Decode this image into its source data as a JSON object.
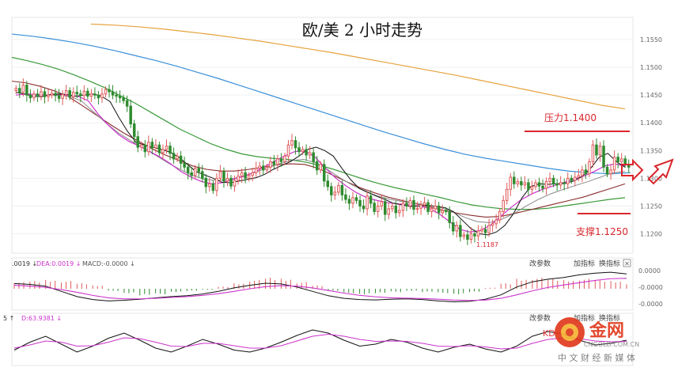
{
  "chart_data": [
    {
      "type": "candlestick",
      "title": "欧/美 2 小时走势",
      "yticks": [
        "1.1550",
        "1.1500",
        "1.1450",
        "1.1400",
        "1.1350",
        "1.1300",
        "1.1250",
        "1.1200"
      ],
      "ylim": [
        1.1165,
        1.159
      ],
      "low_label": "1.1187",
      "annotations": {
        "resistance_label": "压力1.1400",
        "resistance_value": 1.14,
        "support_label": "支撑1.1250",
        "support_value": 1.125
      },
      "colors": {
        "up": "#e05a5a",
        "down": "#2e8b2e",
        "ma_black": "#111111",
        "ma_magenta": "#cc33cc",
        "ma_gray": "#8a8a8a",
        "ma_brown": "#8b2c2c",
        "ma_green": "#3a9a3a",
        "ma_blue": "#3a8fd9",
        "ma_orange": "#e6a23c",
        "level_red": "#d9262c"
      },
      "candles_close": [
        1.1462,
        1.1455,
        1.1468,
        1.145,
        1.1445,
        1.1452,
        1.1448,
        1.1456,
        1.1447,
        1.145,
        1.1453,
        1.1449,
        1.1444,
        1.1451,
        1.1458,
        1.1447,
        1.1455,
        1.1452,
        1.1449,
        1.1457,
        1.1448,
        1.1452,
        1.145,
        1.1445,
        1.1452,
        1.146,
        1.1456,
        1.145,
        1.1448,
        1.1445,
        1.144,
        1.143,
        1.1398,
        1.1375,
        1.1356,
        1.136,
        1.1348,
        1.1365,
        1.1355,
        1.136,
        1.1346,
        1.1352,
        1.1358,
        1.1345,
        1.1335,
        1.134,
        1.1327,
        1.132,
        1.131,
        1.1305,
        1.1318,
        1.1312,
        1.13,
        1.1285,
        1.129,
        1.1278,
        1.13,
        1.1312,
        1.1295,
        1.13,
        1.1286,
        1.1296,
        1.1304,
        1.131,
        1.13,
        1.1305,
        1.131,
        1.1318,
        1.1322,
        1.1315,
        1.132,
        1.133,
        1.1325,
        1.1335,
        1.133,
        1.134,
        1.136,
        1.1368,
        1.1355,
        1.1348,
        1.1352,
        1.1342,
        1.1346,
        1.133,
        1.1315,
        1.1325,
        1.1295,
        1.1285,
        1.127,
        1.1275,
        1.1287,
        1.127,
        1.1262,
        1.1255,
        1.1265,
        1.126,
        1.125,
        1.1245,
        1.1268,
        1.1255,
        1.124,
        1.125,
        1.1258,
        1.1235,
        1.1245,
        1.125,
        1.1238,
        1.1242,
        1.1255,
        1.125,
        1.126,
        1.1244,
        1.1246,
        1.1252,
        1.1256,
        1.124,
        1.1245,
        1.125,
        1.1238,
        1.1242,
        1.124,
        1.122,
        1.1205,
        1.1215,
        1.1195,
        1.1198,
        1.119,
        1.12,
        1.1196,
        1.1205,
        1.1208,
        1.1202,
        1.1215,
        1.1218,
        1.1225,
        1.124,
        1.126,
        1.128,
        1.1302,
        1.129,
        1.1294,
        1.1288,
        1.1292,
        1.128,
        1.1285,
        1.1292,
        1.1286,
        1.1282,
        1.1294,
        1.13,
        1.129,
        1.1288,
        1.1292,
        1.129,
        1.13,
        1.1296,
        1.1302,
        1.1305,
        1.1315,
        1.1308,
        1.133,
        1.136,
        1.1342,
        1.1358,
        1.132,
        1.1308,
        1.1315,
        1.1338,
        1.133,
        1.1335,
        1.1325,
        1.132
      ],
      "ma_black": [
        1.1455,
        1.1452,
        1.1448,
        1.1447,
        1.1451,
        1.1452,
        1.1451,
        1.1448,
        1.145,
        1.1452,
        1.1448,
        1.1438,
        1.141,
        1.1385,
        1.1365,
        1.136,
        1.1356,
        1.1352,
        1.1347,
        1.1338,
        1.1325,
        1.1312,
        1.1306,
        1.13,
        1.1293,
        1.1292,
        1.1295,
        1.1298,
        1.1301,
        1.1307,
        1.1316,
        1.1323,
        1.133,
        1.134,
        1.1352,
        1.1356,
        1.135,
        1.134,
        1.1318,
        1.1298,
        1.1282,
        1.1275,
        1.1268,
        1.1262,
        1.1255,
        1.1252,
        1.1249,
        1.125,
        1.1251,
        1.1249,
        1.1247,
        1.124,
        1.1225,
        1.121,
        1.12,
        1.1198,
        1.1203,
        1.1215,
        1.1236,
        1.1265,
        1.1285,
        1.129,
        1.1289,
        1.129,
        1.1291,
        1.1295,
        1.1303,
        1.1318,
        1.1338,
        1.1345,
        1.133,
        1.132
      ],
      "ma_magenta": [
        1.145,
        1.1452,
        1.1451,
        1.145,
        1.1451,
        1.145,
        1.1448,
        1.144,
        1.1415,
        1.1395,
        1.1378,
        1.1366,
        1.1358,
        1.1348,
        1.1338,
        1.1326,
        1.1312,
        1.1302,
        1.1294,
        1.129,
        1.1292,
        1.1298,
        1.1303,
        1.131,
        1.132,
        1.133,
        1.134,
        1.1348,
        1.135,
        1.1338,
        1.1318,
        1.13,
        1.1286,
        1.1274,
        1.1265,
        1.126,
        1.1256,
        1.1254,
        1.1252,
        1.125,
        1.1246,
        1.1236,
        1.1222,
        1.1208,
        1.1203,
        1.1206,
        1.1216,
        1.1232,
        1.1248,
        1.1262,
        1.1272,
        1.128,
        1.1286,
        1.1292,
        1.1298,
        1.1304,
        1.1312,
        1.1322,
        1.1326,
        1.1322
      ],
      "ma_gray": [
        1.1448,
        1.145,
        1.145,
        1.1448,
        1.144,
        1.142,
        1.14,
        1.1382,
        1.1368,
        1.1355,
        1.1342,
        1.1328,
        1.1316,
        1.1305,
        1.1298,
        1.1296,
        1.1298,
        1.1303,
        1.131,
        1.1318,
        1.1326,
        1.1332,
        1.1334,
        1.1328,
        1.1315,
        1.13,
        1.1287,
        1.1276,
        1.1268,
        1.1262,
        1.1258,
        1.1255,
        1.1252,
        1.1248,
        1.124,
        1.123,
        1.1222,
        1.122,
        1.1226,
        1.1236,
        1.125,
        1.1262,
        1.1272,
        1.128,
        1.1287,
        1.1294,
        1.1302,
        1.131,
        1.1312
      ],
      "ma_brown": [
        1.1475,
        1.1472,
        1.1466,
        1.1458,
        1.1448,
        1.1432,
        1.1415,
        1.1398,
        1.1382,
        1.1368,
        1.1354,
        1.1342,
        1.1332,
        1.1322,
        1.1316,
        1.1313,
        1.1313,
        1.1316,
        1.132,
        1.1324,
        1.1326,
        1.1325,
        1.1318,
        1.1306,
        1.1294,
        1.1283,
        1.1274,
        1.1266,
        1.126,
        1.1254,
        1.1248,
        1.1242,
        1.1237,
        1.1233,
        1.123,
        1.1231,
        1.1236,
        1.1242,
        1.1248,
        1.1254,
        1.126,
        1.1266,
        1.1274,
        1.1282,
        1.129
      ],
      "ma_green": [
        1.1518,
        1.1512,
        1.1505,
        1.1497,
        1.1487,
        1.1476,
        1.1464,
        1.145,
        1.1436,
        1.142,
        1.1404,
        1.1388,
        1.1375,
        1.1362,
        1.1352,
        1.1344,
        1.1339,
        1.1336,
        1.1334,
        1.133,
        1.1324,
        1.1316,
        1.1307,
        1.1298,
        1.129,
        1.1283,
        1.1277,
        1.1271,
        1.1265,
        1.1258,
        1.1252,
        1.1248,
        1.1245,
        1.1244,
        1.1244,
        1.1246,
        1.125,
        1.1254,
        1.1258,
        1.1262,
        1.1265
      ],
      "ma_blue": [
        1.156,
        1.1556,
        1.1551,
        1.1545,
        1.1538,
        1.153,
        1.1521,
        1.1512,
        1.1502,
        1.1491,
        1.148,
        1.1468,
        1.1456,
        1.1444,
        1.1432,
        1.142,
        1.1408,
        1.1396,
        1.1384,
        1.1373,
        1.1362,
        1.1352,
        1.1343,
        1.1336,
        1.133,
        1.1324,
        1.1318,
        1.1313,
        1.131,
        1.1308,
        1.131
      ],
      "ma_orange": [
        1.1578,
        1.1576,
        1.1573,
        1.1569,
        1.1564,
        1.1559,
        1.1553,
        1.1547,
        1.154,
        1.1533,
        1.1526,
        1.1518,
        1.151,
        1.1502,
        1.1494,
        1.1486,
        1.1477,
        1.1468,
        1.1459,
        1.145,
        1.1441,
        1.1432,
        1.1425
      ]
    },
    {
      "type": "line",
      "indicator": "MACD",
      "header": [
        ".0019 ↓",
        "DEA:0.0019 ↓",
        "MACD:-0.0000 ↓"
      ],
      "buttons": [
        "改参数",
        "加指标",
        "换指标",
        "✕"
      ],
      "yticks": [
        "0.0000",
        "-0.0000",
        "-0.0000"
      ],
      "diff": [
        0.3,
        0.25,
        0.15,
        -0.15,
        -0.45,
        -0.62,
        -0.7,
        -0.66,
        -0.6,
        -0.52,
        -0.45,
        -0.4,
        -0.3,
        -0.15,
        0.05,
        0.2,
        0.32,
        0.28,
        0.1,
        -0.15,
        -0.4,
        -0.55,
        -0.62,
        -0.64,
        -0.6,
        -0.58,
        -0.62,
        -0.7,
        -0.75,
        -0.72,
        -0.6,
        -0.35,
        0.1,
        0.4,
        0.55,
        0.65,
        0.8,
        0.9,
        0.95,
        0.85
      ],
      "dea": [
        0.2,
        0.15,
        0.08,
        -0.05,
        -0.2,
        -0.38,
        -0.52,
        -0.58,
        -0.58,
        -0.55,
        -0.5,
        -0.45,
        -0.38,
        -0.28,
        -0.15,
        0.0,
        0.12,
        0.18,
        0.15,
        0.05,
        -0.1,
        -0.25,
        -0.38,
        -0.46,
        -0.52,
        -0.54,
        -0.56,
        -0.6,
        -0.65,
        -0.67,
        -0.65,
        -0.55,
        -0.35,
        -0.12,
        0.08,
        0.22,
        0.35,
        0.48,
        0.58,
        0.6
      ],
      "hist": [
        0.6,
        0.7,
        0.8,
        0.7,
        0.5,
        0.3,
        -0.2,
        -0.4,
        -0.6,
        -0.5,
        -0.3,
        -0.2,
        -0.1,
        0.2,
        0.5,
        0.8,
        1.0,
        0.9,
        0.6,
        0.3,
        -0.2,
        -0.4,
        -0.5,
        -0.4,
        -0.3,
        -0.2,
        -0.3,
        -0.4,
        -0.5,
        -0.3,
        0.1,
        0.5,
        0.9,
        1.0,
        0.9,
        0.8,
        0.9,
        0.8,
        0.7,
        0.5
      ]
    },
    {
      "type": "line",
      "indicator": "KDJ",
      "header": [
        "5 ↑",
        "D:63.9381 ↓"
      ],
      "buttons": [
        "改参数",
        "加指标",
        "换指标"
      ],
      "k": [
        35,
        55,
        70,
        50,
        30,
        45,
        65,
        78,
        60,
        40,
        30,
        45,
        62,
        50,
        35,
        30,
        40,
        55,
        72,
        86,
        78,
        60,
        45,
        50,
        62,
        55,
        40,
        30,
        42,
        50,
        38,
        30,
        45,
        70,
        82,
        75,
        60,
        48,
        52,
        60
      ],
      "d": [
        40,
        48,
        58,
        55,
        45,
        46,
        55,
        66,
        64,
        55,
        45,
        44,
        52,
        52,
        46,
        40,
        40,
        46,
        58,
        70,
        75,
        70,
        62,
        57,
        58,
        57,
        52,
        45,
        44,
        46,
        43,
        38,
        40,
        52,
        62,
        66,
        64,
        58,
        56,
        57
      ]
    }
  ],
  "watermark": {
    "brand": "金网",
    "site": "CNGOLD.COM.CN",
    "footer": "中 文 财 经 新 媒 体",
    "kd_fragment": "KD"
  }
}
